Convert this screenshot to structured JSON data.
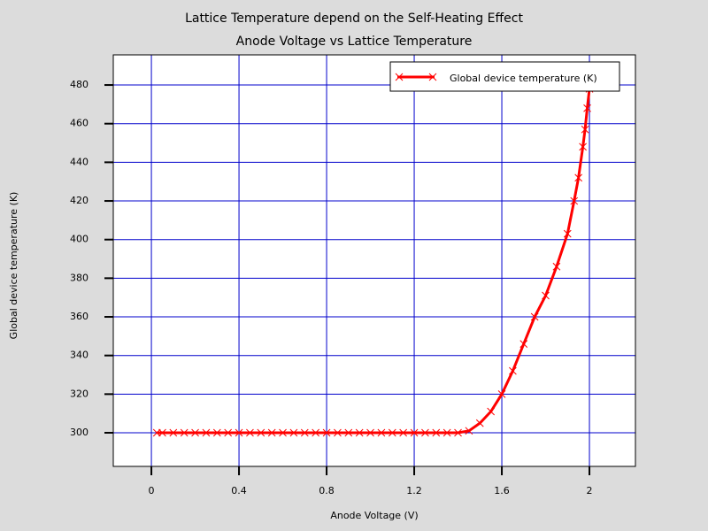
{
  "chart_data": {
    "type": "line",
    "title": "Lattice Temperature depend on the Self-Heating Effect",
    "subtitle": "Anode Voltage vs Lattice Temperature",
    "x_label": "Anode Voltage (V)",
    "y_label": "Global device temperature (K)",
    "x": [
      0.025,
      0.05,
      0.1,
      0.15,
      0.2,
      0.25,
      0.3,
      0.35,
      0.4,
      0.45,
      0.5,
      0.55,
      0.6,
      0.65,
      0.7,
      0.75,
      0.8,
      0.85,
      0.9,
      0.95,
      1.0,
      1.05,
      1.1,
      1.15,
      1.2,
      1.25,
      1.3,
      1.35,
      1.4,
      1.45,
      1.5,
      1.55,
      1.6,
      1.65,
      1.7,
      1.75,
      1.8,
      1.85,
      1.9,
      1.93,
      1.95,
      1.97,
      1.98,
      1.99,
      2.0
    ],
    "series": [
      {
        "name": "Global device temperature (K)",
        "color": "#ff0000",
        "values": [
          300,
          300,
          300,
          300,
          300,
          300,
          300,
          300,
          300,
          300,
          300,
          300,
          300,
          300,
          300,
          300,
          300,
          300,
          300,
          300,
          300,
          300,
          300,
          300,
          300,
          300,
          300,
          300,
          300,
          301,
          305,
          311,
          320,
          332,
          346,
          360,
          371,
          386,
          403,
          420,
          432,
          448,
          457,
          468,
          478
        ]
      }
    ],
    "xlim": [
      -0.174,
      2.21
    ],
    "ylim": [
      282.6,
      495.6
    ],
    "xticks": [
      0,
      0.4,
      0.8,
      1.2,
      1.6,
      2
    ],
    "yticks": [
      300,
      320,
      340,
      360,
      380,
      400,
      420,
      440,
      460,
      480
    ],
    "grid": true,
    "grid_color": "#0000cc",
    "legend": "upper right"
  }
}
